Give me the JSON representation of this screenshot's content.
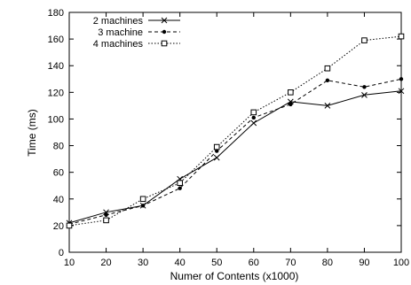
{
  "chart_data": {
    "type": "line",
    "title": "",
    "xlabel": "Numer of Contents (x1000)",
    "ylabel": "Time (ms)",
    "x": [
      10,
      20,
      30,
      40,
      50,
      60,
      70,
      80,
      90,
      100
    ],
    "xlim": [
      10,
      100
    ],
    "ylim": [
      0,
      180
    ],
    "xticks": [
      10,
      20,
      30,
      40,
      50,
      60,
      70,
      80,
      90,
      100
    ],
    "yticks": [
      0,
      20,
      40,
      60,
      80,
      100,
      120,
      140,
      160,
      180
    ],
    "grid": false,
    "legend_position": "top-left",
    "series": [
      {
        "name": "2 machines",
        "values": [
          22,
          30,
          35,
          55,
          71,
          97,
          113,
          110,
          118,
          121
        ],
        "marker": "x",
        "dash": "solid",
        "color": "#000000"
      },
      {
        "name": "3 machine",
        "values": [
          21,
          28,
          35,
          48,
          76,
          101,
          111,
          129,
          124,
          130
        ],
        "marker": "dot",
        "dash": "dashed",
        "color": "#000000"
      },
      {
        "name": "4 machines",
        "values": [
          20,
          24,
          40,
          52,
          79,
          105,
          120,
          138,
          159,
          162
        ],
        "marker": "square",
        "dash": "dotted",
        "color": "#000000"
      }
    ]
  }
}
